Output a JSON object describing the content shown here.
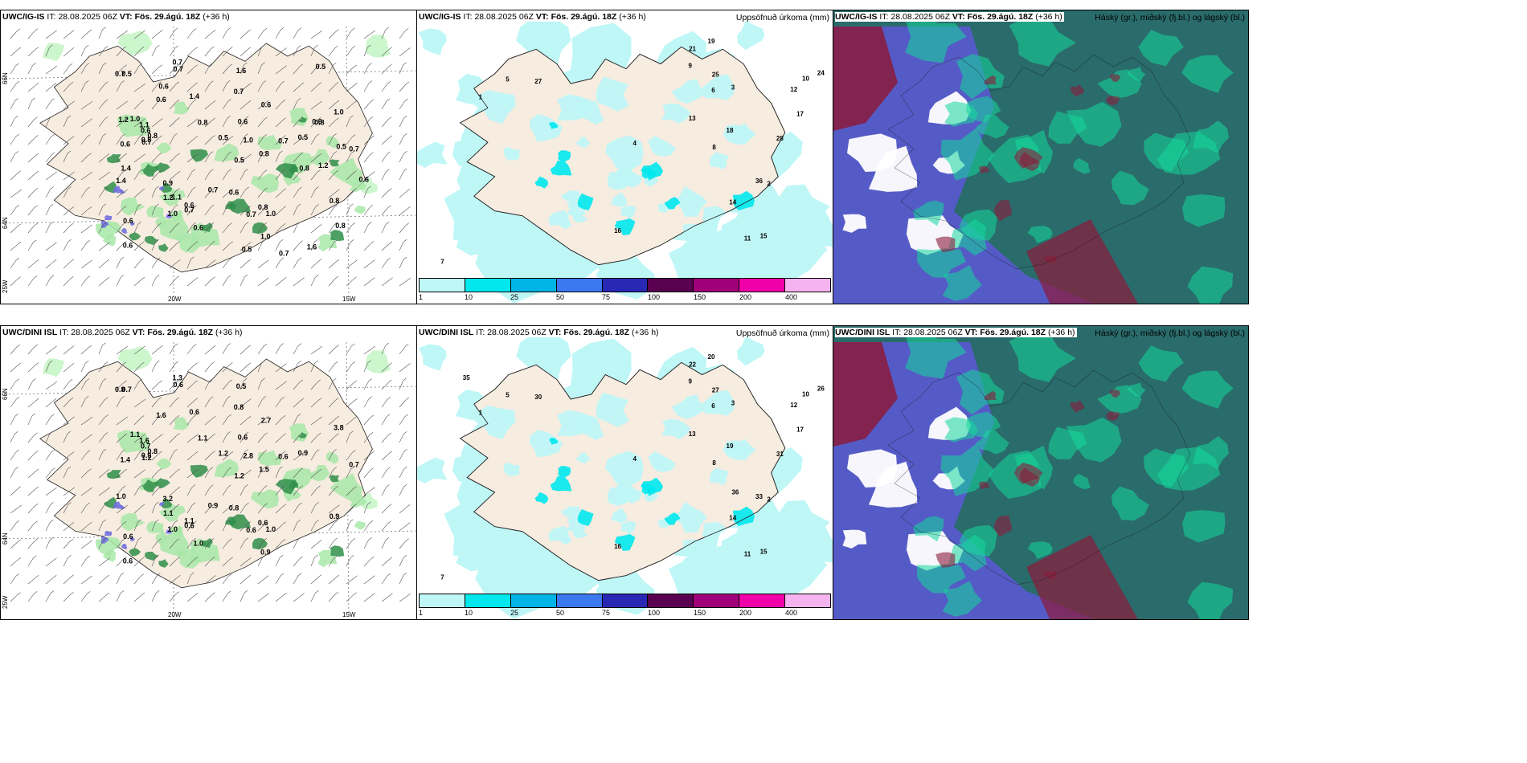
{
  "panels": [
    {
      "id": "tl",
      "kind": "wind",
      "title_model": "UWC/IG-IS",
      "title_it": "28.08.2025 06Z",
      "title_vt": "VT: Fös. 29.ágú. 18Z",
      "title_lead": "(+36 h)",
      "right": "",
      "axis": {
        "lat_top": "66N",
        "lat_mid": "64N",
        "lon_left": "25W",
        "lon_mid": "20W",
        "lon_right": "15W"
      },
      "labels": [
        "0.6",
        "0.6",
        "0.6",
        "0.6",
        "0.6",
        "0.5",
        "0.8",
        "0.7",
        "0.7",
        "0.8",
        "0.9",
        "1.0",
        "1.4",
        "0.6",
        "0.7",
        "0.5",
        "0.6",
        "1.0",
        "0.7",
        "0.6",
        "0.7",
        "0.5",
        "1.0",
        "0.7",
        "0.8",
        "1.0",
        "0.7",
        "1.1",
        "0.7",
        "0.8",
        "0.8",
        "1.6",
        "1.0",
        "0.6",
        "1.4",
        "0.6",
        "0.7",
        "1.2",
        "0.8",
        "1.0",
        "0.7",
        "0.5",
        "1.1",
        "0.8",
        "1.2",
        "1.6",
        "1.4",
        "0.8",
        "0.5",
        "0.6",
        "0.5",
        "0.5",
        "0.7",
        "0.8",
        "0.6",
        "0.6",
        "1.2"
      ]
    },
    {
      "id": "tm",
      "kind": "precip",
      "title_model": "UWC/IG-IS",
      "title_it": "28.08.2025 06Z",
      "title_vt": "VT: Fös. 29.ágú. 18Z",
      "title_lead": "(+36 h)",
      "right": "Uppsöfnuð úrkoma (mm)",
      "labels": [
        "1",
        "2",
        "3",
        "4",
        "5",
        "6",
        "7",
        "8",
        "9",
        "10",
        "11",
        "12",
        "13",
        "14",
        "15",
        "16",
        "17",
        "18",
        "19",
        "21",
        "24",
        "25",
        "27",
        "28",
        "36"
      ]
    },
    {
      "id": "tr",
      "kind": "cloud",
      "title_model": "UWC/IG-IS",
      "title_it": "28.08.2025 06Z",
      "title_vt": "VT: Fös. 29.ágú. 18Z",
      "title_lead": "(+36 h)",
      "right": "Háský (gr.), miðský (fj.bl.) og lágský (bl.)"
    },
    {
      "id": "bl",
      "kind": "wind",
      "title_model": "UWC/DINI ISL",
      "title_it": "28.08.2025 06Z",
      "title_vt": "VT: Fös. 29.ágú. 18Z",
      "title_lead": "(+36 h)",
      "right": "",
      "axis": {
        "lat_top": "66N",
        "lat_mid": "64N",
        "lon_left": "25W",
        "lon_mid": "20W",
        "lon_right": "15W"
      },
      "labels": [
        "0.6",
        "1.4",
        "0.7",
        "0.6",
        "1.0",
        "0.9",
        "0.8",
        "0.7",
        "1.2",
        "0.9",
        "3.2",
        "1.0",
        "0.6",
        "0.8",
        "0.6",
        "0.7",
        "0.6",
        "1.0",
        "0.6",
        "1.1",
        "0.8",
        "1.2",
        "2.8",
        "0.6",
        "0.9",
        "1.1",
        "1.3",
        "1.6",
        "0.6",
        "1.1",
        "0.6",
        "0.5",
        "3.8",
        "2.7",
        "1.0",
        "1.6",
        "0.8",
        "1.1",
        "1.5",
        "0.9",
        "0.9",
        "1.2"
      ]
    },
    {
      "id": "bm",
      "kind": "precip",
      "title_model": "UWC/DINI ISL",
      "title_it": "28.08.2025 06Z",
      "title_vt": "VT: Fös. 29.ágú. 18Z",
      "title_lead": "(+36 h)",
      "right": "Uppsöfnuð úrkoma (mm)",
      "labels": [
        "1",
        "2",
        "3",
        "4",
        "5",
        "6",
        "7",
        "8",
        "9",
        "10",
        "11",
        "12",
        "13",
        "14",
        "15",
        "16",
        "17",
        "19",
        "20",
        "22",
        "26",
        "27",
        "30",
        "31",
        "33",
        "35",
        "36"
      ]
    },
    {
      "id": "br",
      "kind": "cloud",
      "title_model": "UWC/DINI ISL",
      "title_it": "28.08.2025 06Z",
      "title_vt": "VT: Fös. 29.ágú. 18Z",
      "title_lead": "(+36 h)",
      "right": "Háský (gr.), miðský (fj.bl.) og lágský (bl.)"
    }
  ],
  "colorbar": {
    "ticks": [
      "1",
      "10",
      "25",
      "50",
      "75",
      "100",
      "150",
      "200",
      "400"
    ],
    "colors": [
      "#bff7f7",
      "#00e8ee",
      "#00b4e6",
      "#3c78f0",
      "#2828b4",
      "#5a0050",
      "#a0007a",
      "#f000a8",
      "#f5b4f0"
    ]
  },
  "colors": {
    "land": "#f7ece0",
    "cloud_low": "#2a6b6b",
    "cloud_mid": "#5a5ad0",
    "cloud_high": "#14d89a",
    "cloud_red": "#8c1a3a",
    "precip_light": "#bff7f7",
    "precip_mid": "#00e8ee"
  }
}
